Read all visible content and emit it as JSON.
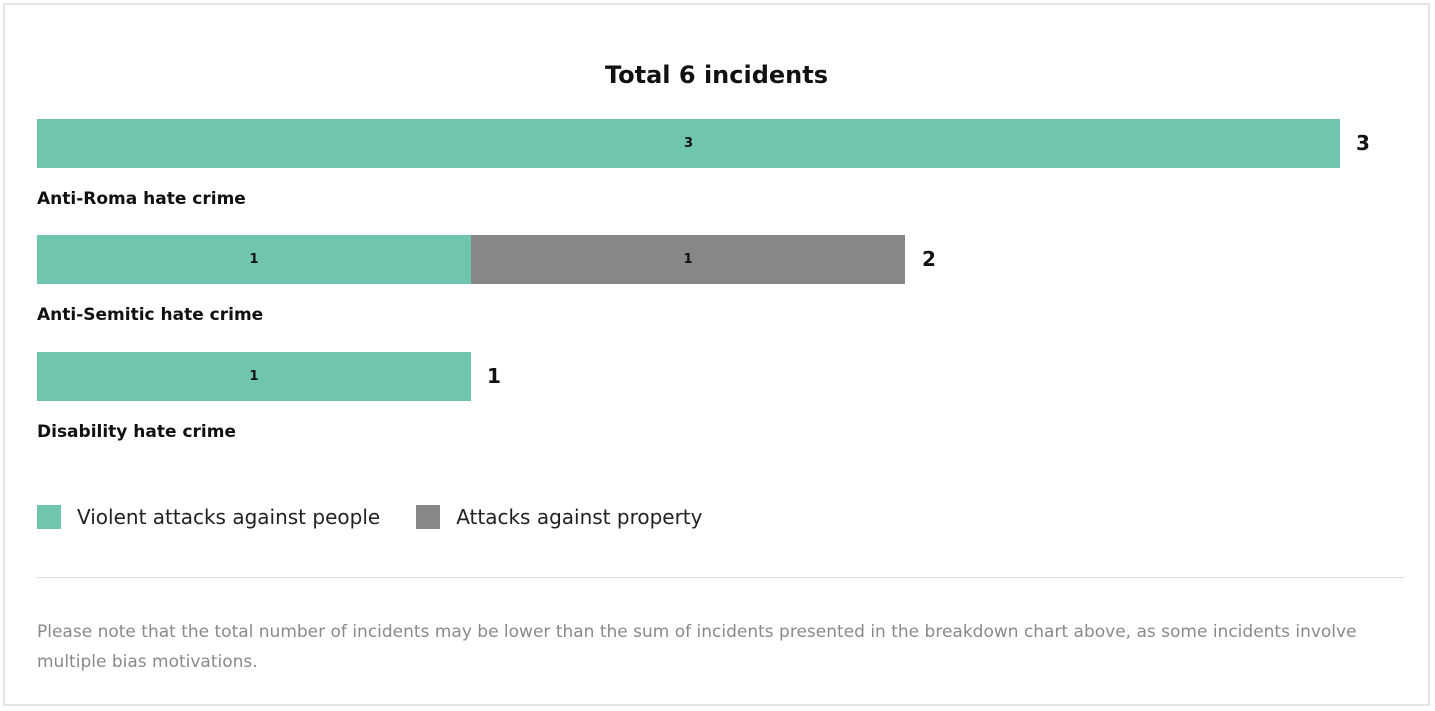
{
  "chart_data": {
    "type": "bar",
    "orientation": "horizontal",
    "stacked": true,
    "title": "Total 6 incidents",
    "categories": [
      "Anti-Roma hate crime",
      "Anti-Semitic hate crime",
      "Disability hate crime"
    ],
    "series": [
      {
        "name": "Violent attacks against people",
        "color": "#6fc5ae",
        "values": [
          3,
          1,
          1
        ]
      },
      {
        "name": "Attacks against property",
        "color": "#878787",
        "values": [
          0,
          1,
          0
        ]
      }
    ],
    "totals": [
      3,
      2,
      1
    ],
    "xlim": [
      0,
      3
    ],
    "grid": false,
    "legend_position": "bottom-left"
  },
  "footnote": "Please note that the total number of incidents may be lower than the sum of incidents presented in the breakdown chart above, as some incidents involve multiple bias motivations."
}
